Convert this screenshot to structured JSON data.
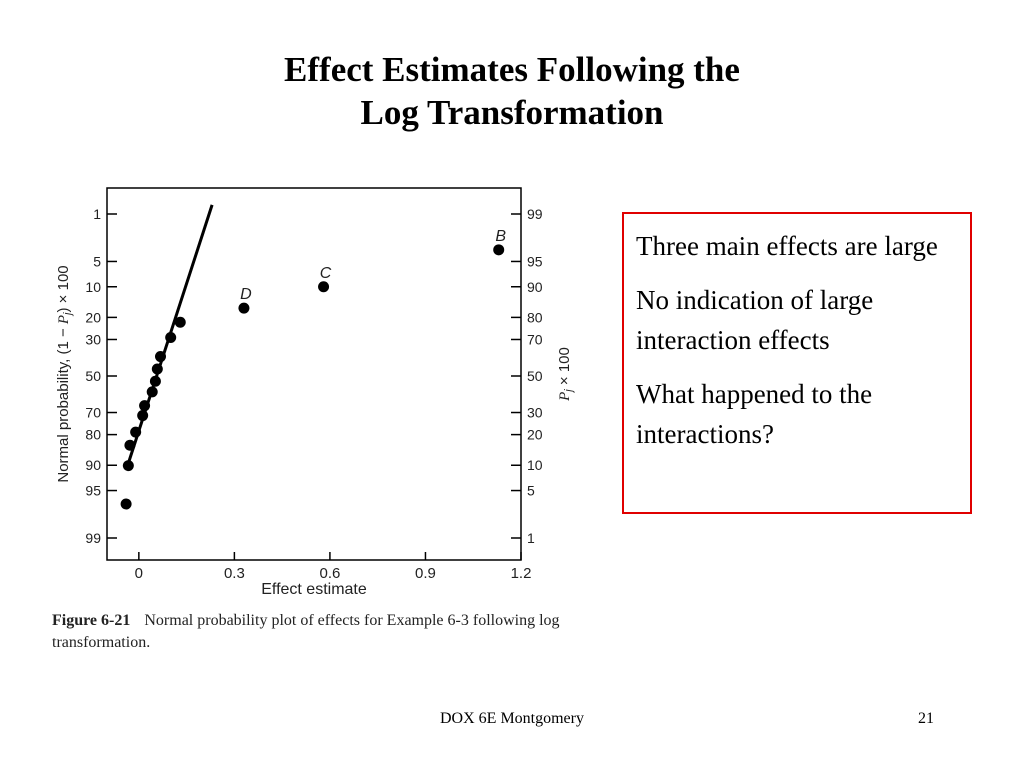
{
  "slide": {
    "title_line1": "Effect Estimates Following the",
    "title_line2": "Log Transformation",
    "footer_center": "DOX 6E Montgomery",
    "page_number": "21"
  },
  "callout": {
    "border_color": "#e00000",
    "points": [
      "Three main effects are large",
      "No indication of large interaction effects",
      "What happened to the interactions?"
    ]
  },
  "figure": {
    "number": "Figure 6-21",
    "caption": "Normal probability plot of effects for Example 6-3 following log transformation."
  },
  "chart_data": {
    "type": "scatter",
    "xlabel": "Effect estimate",
    "ylabel_left": "Normal probability, (1 − P_j) × 100",
    "ylabel_right": "P_j × 100",
    "xlim": [
      -0.1,
      1.2
    ],
    "x_ticks": [
      0,
      0.3,
      0.6,
      0.9,
      1.2
    ],
    "x_tick_labels": [
      "0",
      "0.3",
      "0.6",
      "0.9",
      "1.2"
    ],
    "y_ticks_right": [
      1,
      5,
      10,
      20,
      30,
      50,
      70,
      80,
      90,
      95,
      99
    ],
    "y_ticks_left": [
      99,
      95,
      90,
      80,
      70,
      50,
      30,
      20,
      10,
      5,
      1
    ],
    "y_scale": "normal-probability",
    "grid": false,
    "points": [
      {
        "x": -0.04,
        "p": 3.3,
        "label": ""
      },
      {
        "x": -0.033,
        "p": 9.9,
        "label": ""
      },
      {
        "x": -0.028,
        "p": 16.0,
        "label": ""
      },
      {
        "x": -0.01,
        "p": 21.0,
        "label": ""
      },
      {
        "x": 0.012,
        "p": 28.5,
        "label": ""
      },
      {
        "x": 0.018,
        "p": 33.5,
        "label": ""
      },
      {
        "x": 0.042,
        "p": 41.0,
        "label": ""
      },
      {
        "x": 0.052,
        "p": 47.0,
        "label": ""
      },
      {
        "x": 0.058,
        "p": 54.0,
        "label": ""
      },
      {
        "x": 0.068,
        "p": 61.0,
        "label": ""
      },
      {
        "x": 0.1,
        "p": 71.0,
        "label": ""
      },
      {
        "x": 0.13,
        "p": 78.0,
        "label": ""
      },
      {
        "x": 0.33,
        "p": 83.5,
        "label": "D"
      },
      {
        "x": 0.58,
        "p": 90.0,
        "label": "C"
      },
      {
        "x": 1.13,
        "p": 96.5,
        "label": "B"
      }
    ],
    "fit_line": {
      "x": [
        -0.035,
        0.23
      ],
      "p": [
        10.0,
        99.3
      ]
    }
  }
}
